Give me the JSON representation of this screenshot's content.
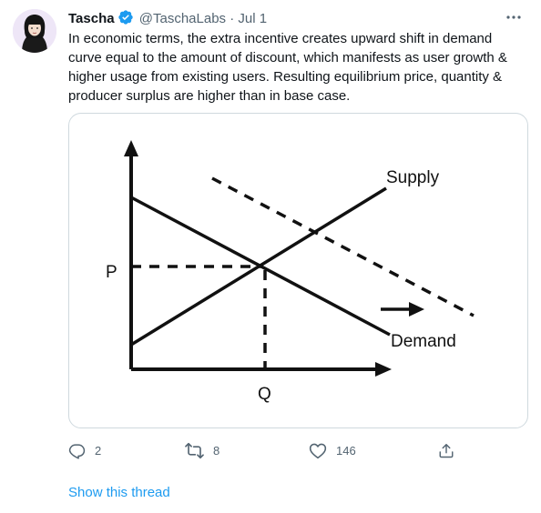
{
  "tweet": {
    "author_name": "Tascha",
    "handle": "@TaschaLabs",
    "separator": "·",
    "date": "Jul 1",
    "text": "In economic terms, the extra incentive creates upward shift in demand curve equal to the amount of discount, which manifests as user growth & higher usage from existing users. Resulting equilibrium price, quantity & producer surplus are higher than in base case.",
    "show_thread": "Show this thread"
  },
  "diagram": {
    "supply_label": "Supply",
    "demand_label": "Demand",
    "price_label": "P",
    "quantity_label": "Q"
  },
  "actions": {
    "replies": "2",
    "retweets": "8",
    "likes": "146"
  },
  "colors": {
    "accent": "#1d9bf0",
    "text_primary": "#0f1419",
    "text_secondary": "#536471",
    "border": "#cfd9de"
  }
}
